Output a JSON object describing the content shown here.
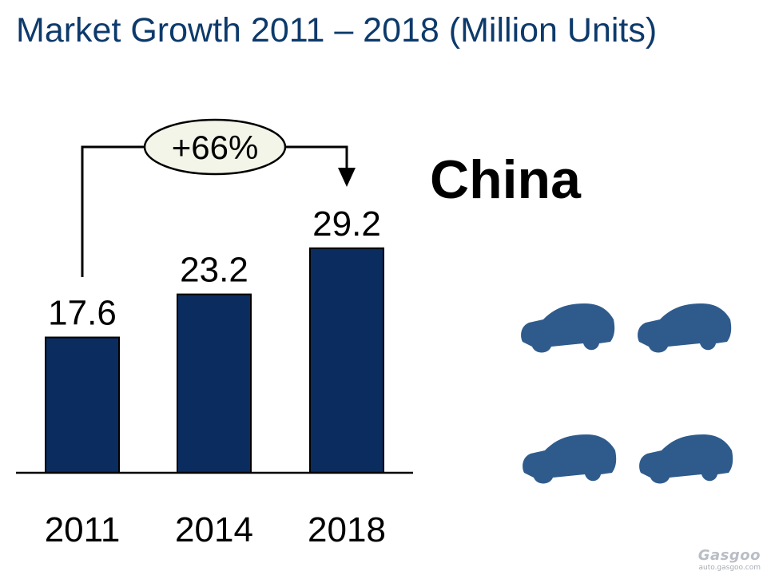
{
  "title": "Market Growth 2011 – 2018 (Million Units)",
  "region": "China",
  "growth_annotation": "+66%",
  "colors": {
    "title": "#0d3a6b",
    "bar": "#0b2c5e",
    "car": "#2f5b8c",
    "axis": "#000000"
  },
  "icons": [
    "car-icon",
    "car-icon",
    "car-icon",
    "car-icon"
  ],
  "watermark": {
    "brand": "Gasgoo",
    "url": "auto.gasgoo.com"
  },
  "chart_data": {
    "type": "bar",
    "categories": [
      "2011",
      "2014",
      "2018"
    ],
    "values": [
      17.6,
      23.2,
      29.2
    ],
    "data_labels": [
      "17.6",
      "23.2",
      "29.2"
    ],
    "title": "Market Growth 2011 – 2018 (Million Units)",
    "xlabel": "",
    "ylabel": "",
    "ylim": [
      0,
      40
    ],
    "grid": false,
    "legend": "none",
    "annotation": {
      "text": "+66%",
      "from": "2011",
      "to": "2018"
    }
  }
}
